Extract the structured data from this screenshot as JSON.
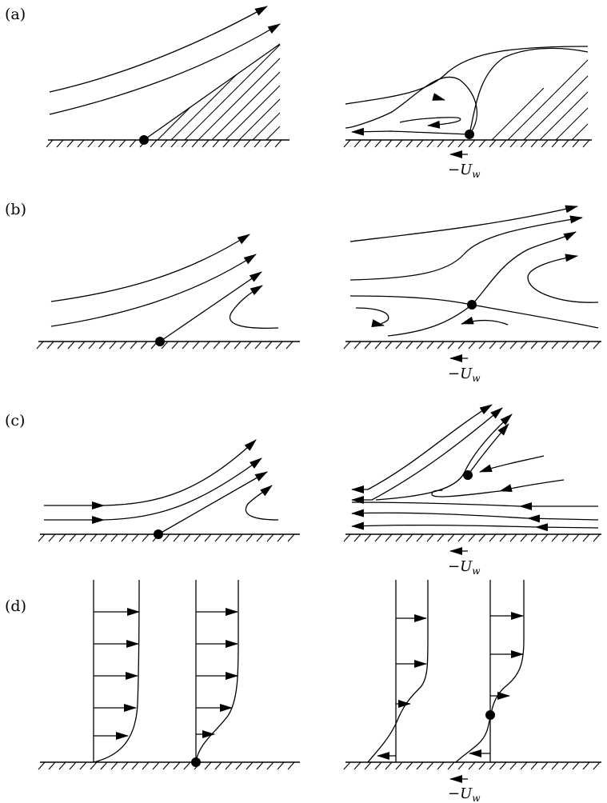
{
  "panels": [
    {
      "label": "(a)"
    },
    {
      "label": "(b)"
    },
    {
      "label": "(c)"
    },
    {
      "label": "(d)"
    }
  ],
  "wall_velocity": {
    "sign": "−",
    "symbol": "U",
    "subscript": "w"
  }
}
